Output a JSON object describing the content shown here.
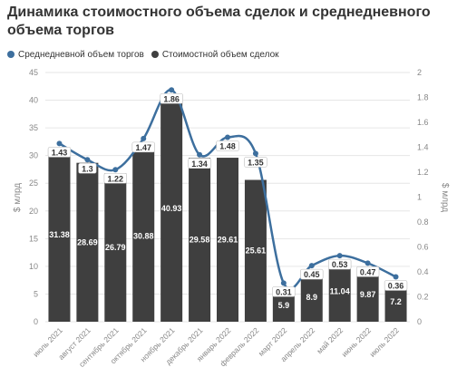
{
  "title": "Динамика стоимостного объема сделок и среднедневного объема торгов",
  "legend": {
    "line_label": "Среднедневной объем торгов",
    "bar_label": "Стоимостной объем сделок"
  },
  "colors": {
    "bar": "#3f3f3f",
    "line": "#3d6f9e",
    "grid": "#e6e6e6",
    "axis_text": "#888888"
  },
  "chart_data": {
    "type": "bar",
    "title": "Динамика стоимостного объема сделок и среднедневного объема торгов",
    "categories": [
      "июль 2021",
      "август 2021",
      "сентябрь 2021",
      "октябрь 2021",
      "ноябрь 2021",
      "декабрь 2021",
      "январь 2022",
      "февраль 2022",
      "март 2022",
      "апрель 2022",
      "май 2022",
      "июнь 2022",
      "июль 2022"
    ],
    "series": [
      {
        "name": "Стоимостной объем сделок",
        "type": "bar",
        "axis": "left",
        "values": [
          31.38,
          28.69,
          26.79,
          30.88,
          40.93,
          29.58,
          29.61,
          25.61,
          5.9,
          8.9,
          11.04,
          9.87,
          7.2
        ]
      },
      {
        "name": "Среднедневной объем торгов",
        "type": "line",
        "axis": "right",
        "values": [
          1.43,
          1.3,
          1.22,
          1.47,
          1.86,
          1.34,
          1.48,
          1.35,
          0.31,
          0.45,
          0.53,
          0.47,
          0.36
        ]
      }
    ],
    "left_axis": {
      "label": "$ млрд",
      "min": 0,
      "max": 45,
      "ticks": [
        0,
        5,
        10,
        15,
        20,
        25,
        30,
        35,
        40,
        45
      ]
    },
    "right_axis": {
      "label": "$ млрд",
      "min": 0,
      "max": 2,
      "ticks": [
        "0",
        "0.2",
        "0.4",
        "0.6",
        "0.8",
        "1",
        "1.2",
        "1.4",
        "1.6",
        "1.8",
        "2"
      ]
    },
    "grid": true,
    "legend_position": "top-left"
  }
}
